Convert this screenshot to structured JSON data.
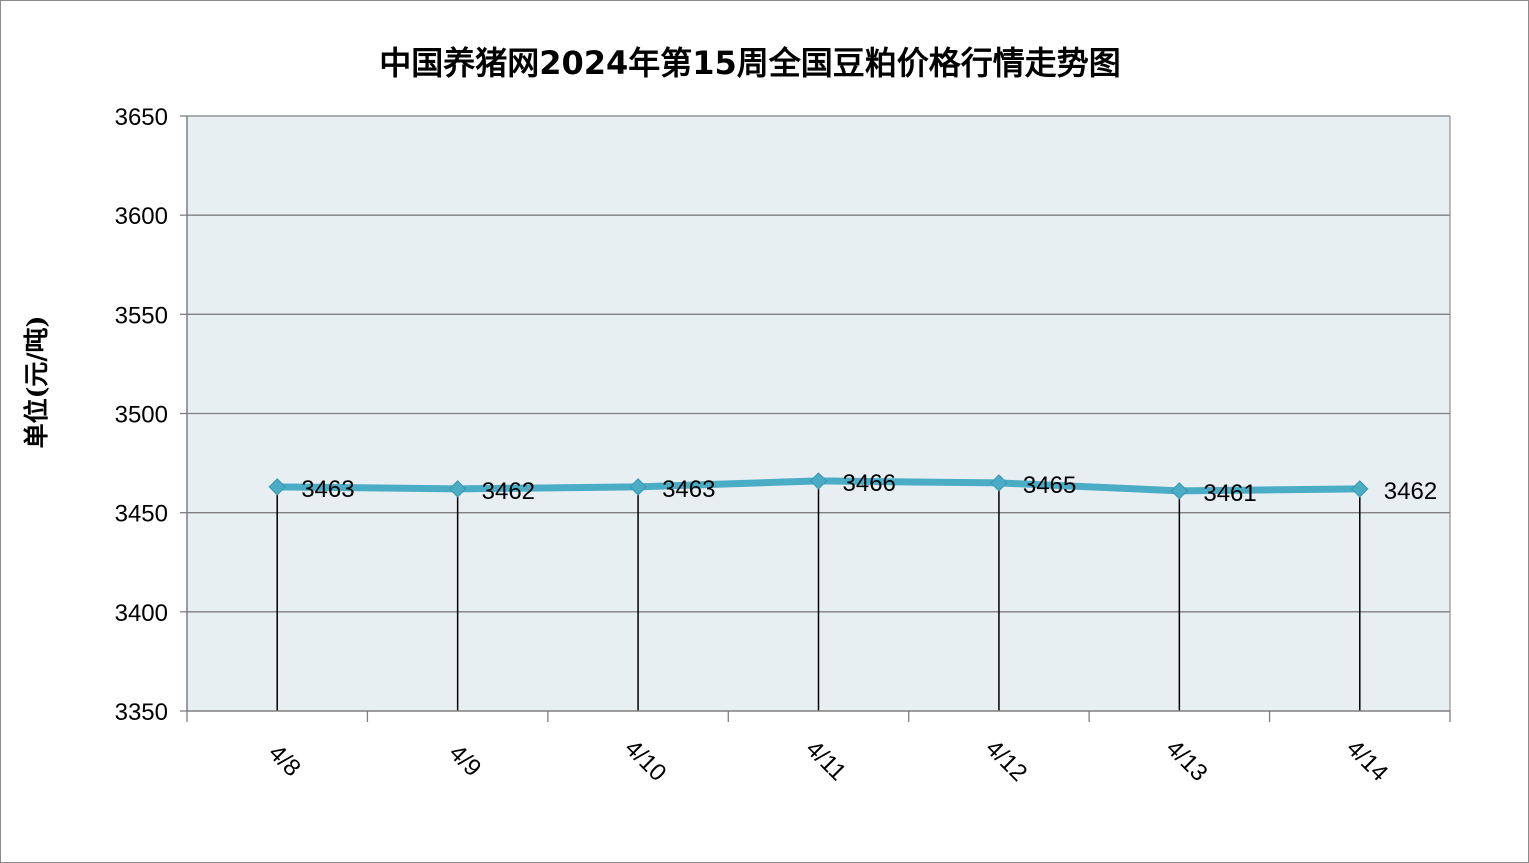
{
  "chart_data": {
    "type": "line",
    "title": "中国养猪网2024年第15周全国豆粕价格行情走势图",
    "ylabel": "单位(元/吨)",
    "xlabel": "",
    "categories": [
      "4/8",
      "4/9",
      "4/10",
      "4/11",
      "4/12",
      "4/13",
      "4/14"
    ],
    "series": [
      {
        "values": [
          3463,
          3462,
          3463,
          3466,
          3465,
          3461,
          3462
        ]
      }
    ],
    "ylim": [
      3350,
      3650
    ],
    "yticks": [
      3350,
      3400,
      3450,
      3500,
      3550,
      3600,
      3650
    ],
    "grid": true,
    "drop_lines": true,
    "data_labels": true,
    "colors": {
      "line": "#4bacc6",
      "plot_bg": "#e8eff3",
      "grid": "#7f7f7f"
    }
  }
}
